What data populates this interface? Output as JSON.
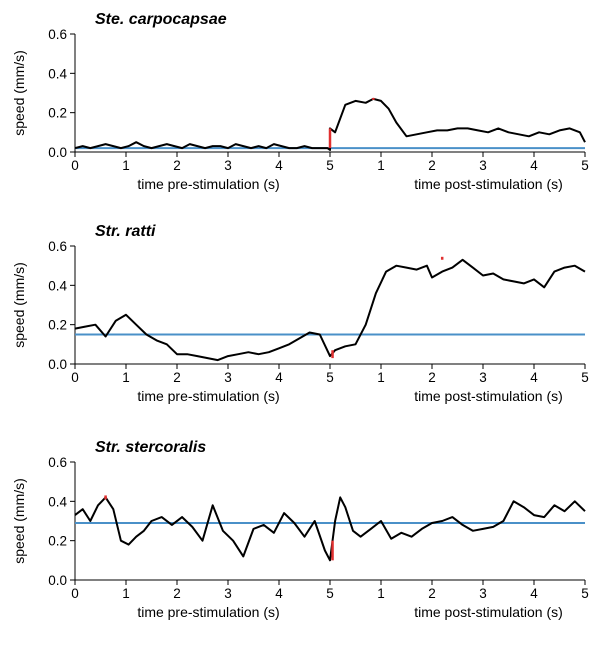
{
  "chart_data": [
    {
      "type": "line",
      "title": "Ste. carpocapsae",
      "ylabel": "speed (mm/s)",
      "xlabel_pre": "time pre-stimulation (s)",
      "xlabel_post": "time post-stimulation (s)",
      "ylim": [
        0,
        0.6
      ],
      "yticks": [
        "0.0",
        "0.2",
        "0.4",
        "0.6"
      ],
      "xlim_pre": [
        0,
        5
      ],
      "xlim_post": [
        0,
        5
      ],
      "xticks_pre": [
        "0",
        "1",
        "2",
        "3",
        "4",
        "5"
      ],
      "xticks_post": [
        "1",
        "2",
        "3",
        "4",
        "5"
      ],
      "baseline": 0.02,
      "series": [
        {
          "x": [
            0,
            0.15,
            0.3,
            0.45,
            0.6,
            0.75,
            0.9,
            1.05,
            1.2,
            1.35,
            1.5,
            1.65,
            1.8,
            1.95,
            2.1,
            2.25,
            2.4,
            2.55,
            2.7,
            2.85,
            3.0,
            3.15,
            3.3,
            3.45,
            3.6,
            3.75,
            3.9,
            4.05,
            4.2,
            4.35,
            4.5,
            4.65,
            4.8,
            4.95,
            5.0,
            5.0,
            5.1,
            5.3,
            5.5,
            5.7,
            5.85,
            6.0,
            6.15,
            6.3,
            6.5,
            6.7,
            6.9,
            7.1,
            7.3,
            7.5,
            7.7,
            7.9,
            8.1,
            8.3,
            8.5,
            8.7,
            8.9,
            9.1,
            9.3,
            9.5,
            9.7,
            9.9,
            10.0
          ],
          "y": [
            0.02,
            0.03,
            0.02,
            0.03,
            0.04,
            0.03,
            0.02,
            0.03,
            0.05,
            0.03,
            0.02,
            0.03,
            0.04,
            0.03,
            0.02,
            0.04,
            0.03,
            0.02,
            0.03,
            0.03,
            0.02,
            0.04,
            0.03,
            0.02,
            0.03,
            0.02,
            0.04,
            0.03,
            0.02,
            0.02,
            0.03,
            0.02,
            0.02,
            0.02,
            0.01,
            0.12,
            0.1,
            0.24,
            0.26,
            0.25,
            0.27,
            0.26,
            0.22,
            0.15,
            0.08,
            0.09,
            0.1,
            0.11,
            0.11,
            0.12,
            0.12,
            0.11,
            0.1,
            0.12,
            0.1,
            0.09,
            0.08,
            0.1,
            0.09,
            0.11,
            0.12,
            0.1,
            0.05
          ]
        }
      ],
      "markers": [
        {
          "x": 5.0,
          "y0": 0.02,
          "y1": 0.12
        },
        {
          "x": 5.85,
          "y0": 0.265,
          "y1": 0.275
        }
      ]
    },
    {
      "type": "line",
      "title": "Str. ratti",
      "ylabel": "speed (mm/s)",
      "xlabel_pre": "time pre-stimulation (s)",
      "xlabel_post": "time post-stimulation (s)",
      "ylim": [
        0,
        0.6
      ],
      "yticks": [
        "0.0",
        "0.2",
        "0.4",
        "0.6"
      ],
      "xlim_pre": [
        0,
        5
      ],
      "xlim_post": [
        0,
        5
      ],
      "xticks_pre": [
        "0",
        "1",
        "2",
        "3",
        "4",
        "5"
      ],
      "xticks_post": [
        "1",
        "2",
        "3",
        "4",
        "5"
      ],
      "baseline": 0.15,
      "series": [
        {
          "x": [
            0,
            0.2,
            0.4,
            0.6,
            0.8,
            1.0,
            1.2,
            1.4,
            1.6,
            1.8,
            2.0,
            2.2,
            2.4,
            2.6,
            2.8,
            3.0,
            3.2,
            3.4,
            3.6,
            3.8,
            4.0,
            4.2,
            4.4,
            4.6,
            4.8,
            5.0,
            5.1,
            5.3,
            5.5,
            5.7,
            5.9,
            6.1,
            6.3,
            6.5,
            6.7,
            6.9,
            7.0,
            7.2,
            7.4,
            7.6,
            7.8,
            8.0,
            8.2,
            8.4,
            8.6,
            8.8,
            9.0,
            9.2,
            9.4,
            9.6,
            9.8,
            10.0
          ],
          "y": [
            0.18,
            0.19,
            0.2,
            0.14,
            0.22,
            0.25,
            0.2,
            0.15,
            0.12,
            0.1,
            0.05,
            0.05,
            0.04,
            0.03,
            0.02,
            0.04,
            0.05,
            0.06,
            0.05,
            0.06,
            0.08,
            0.1,
            0.13,
            0.16,
            0.15,
            0.04,
            0.07,
            0.09,
            0.1,
            0.2,
            0.36,
            0.47,
            0.5,
            0.49,
            0.48,
            0.5,
            0.44,
            0.47,
            0.49,
            0.53,
            0.49,
            0.45,
            0.46,
            0.43,
            0.42,
            0.41,
            0.43,
            0.39,
            0.47,
            0.49,
            0.5,
            0.47
          ]
        }
      ],
      "markers": [
        {
          "x": 5.05,
          "y0": 0.03,
          "y1": 0.07
        },
        {
          "x": 7.2,
          "y0": 0.53,
          "y1": 0.545
        }
      ]
    },
    {
      "type": "line",
      "title": "Str. stercoralis",
      "ylabel": "speed (mm/s)",
      "xlabel_pre": "time pre-stimulation (s)",
      "xlabel_post": "time post-stimulation (s)",
      "ylim": [
        0,
        0.6
      ],
      "yticks": [
        "0.0",
        "0.2",
        "0.4",
        "0.6"
      ],
      "xlim_pre": [
        0,
        5
      ],
      "xlim_post": [
        0,
        5
      ],
      "xticks_pre": [
        "0",
        "1",
        "2",
        "3",
        "4",
        "5"
      ],
      "xticks_post": [
        "1",
        "2",
        "3",
        "4",
        "5"
      ],
      "baseline": 0.29,
      "series": [
        {
          "x": [
            0,
            0.15,
            0.3,
            0.45,
            0.6,
            0.75,
            0.9,
            1.05,
            1.2,
            1.35,
            1.5,
            1.7,
            1.9,
            2.1,
            2.3,
            2.5,
            2.7,
            2.9,
            3.1,
            3.3,
            3.5,
            3.7,
            3.9,
            4.1,
            4.3,
            4.5,
            4.7,
            4.9,
            5.0,
            5.1,
            5.2,
            5.3,
            5.45,
            5.6,
            5.8,
            6.0,
            6.2,
            6.4,
            6.6,
            6.8,
            7.0,
            7.2,
            7.4,
            7.6,
            7.8,
            8.0,
            8.2,
            8.4,
            8.6,
            8.8,
            9.0,
            9.2,
            9.4,
            9.6,
            9.8,
            10.0
          ],
          "y": [
            0.33,
            0.36,
            0.3,
            0.38,
            0.42,
            0.36,
            0.2,
            0.18,
            0.22,
            0.25,
            0.3,
            0.32,
            0.28,
            0.32,
            0.27,
            0.2,
            0.38,
            0.25,
            0.2,
            0.12,
            0.26,
            0.28,
            0.24,
            0.34,
            0.29,
            0.22,
            0.3,
            0.15,
            0.1,
            0.3,
            0.42,
            0.37,
            0.25,
            0.22,
            0.26,
            0.3,
            0.21,
            0.24,
            0.22,
            0.26,
            0.29,
            0.3,
            0.32,
            0.28,
            0.25,
            0.26,
            0.27,
            0.3,
            0.4,
            0.37,
            0.33,
            0.32,
            0.38,
            0.35,
            0.4,
            0.35
          ]
        }
      ],
      "markers": [
        {
          "x": 0.6,
          "y0": 0.41,
          "y1": 0.43
        },
        {
          "x": 5.05,
          "y0": 0.1,
          "y1": 0.2
        }
      ]
    }
  ],
  "style": {
    "line_color": "#000000",
    "baseline_color": "#4a90c8",
    "marker_color": "#e03030"
  }
}
